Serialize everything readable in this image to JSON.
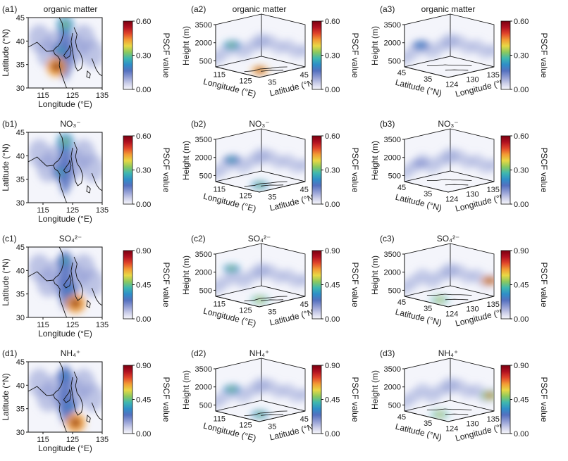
{
  "figure": {
    "colors": {
      "map_background": "#f4f5fb",
      "cmap": [
        "#f7f7fc",
        "#c9cce8",
        "#8f9bd3",
        "#5470bf",
        "#2f8fc8",
        "#3fb7b0",
        "#8cc95e",
        "#e8d845",
        "#f29b34",
        "#e0452a",
        "#b01020",
        "#7a0010"
      ]
    },
    "panels": [
      {
        "id": "a1",
        "label": "(a1)",
        "title": "organic matter",
        "view": "map",
        "xlabel": "Longitude (°E)",
        "ylabel": "Latitude (°N)",
        "xticks": [
          "115",
          "125",
          "135"
        ],
        "yticks": [
          "30",
          "35",
          "40",
          "45"
        ],
        "cbar_label": "PSCF value",
        "cbar_ticks": [
          "0.00",
          "0.30",
          "0.60"
        ]
      },
      {
        "id": "a2",
        "label": "(a2)",
        "title": "organic matter",
        "view": "box_lon",
        "zlabel": "Height (m)",
        "zticks": [
          "500",
          "2000",
          "3500"
        ],
        "axis1_label": "Longitude (°E)",
        "axis1_ticks": [
          "115",
          "125"
        ],
        "axis2_label": "Latitude (°N)",
        "axis2_ticks": [
          "35",
          "45"
        ],
        "cbar_label": "PSCF value",
        "cbar_ticks": [
          "0.00",
          "0.30",
          "0.60"
        ]
      },
      {
        "id": "a3",
        "label": "(a3)",
        "title": "organic matter",
        "view": "box_lat",
        "zlabel": "Height (m)",
        "zticks": [
          "500",
          "2000",
          "3500"
        ],
        "axis1_label": "Latitude (°N)",
        "axis1_ticks": [
          "45",
          "35"
        ],
        "axis2_label": "Longitude (°E)",
        "axis2_ticks": [
          "124",
          "130",
          "135"
        ],
        "cbar_label": "PSCF value",
        "cbar_ticks": [
          "0.00",
          "0.30",
          "0.60"
        ]
      },
      {
        "id": "b1",
        "label": "(b1)",
        "title": "NO₃⁻",
        "view": "map",
        "xlabel": "Longitude (°E)",
        "ylabel": "Latitude (°N)",
        "xticks": [
          "115",
          "125",
          "135"
        ],
        "yticks": [
          "30",
          "35",
          "40",
          "45"
        ],
        "cbar_label": "PSCF value",
        "cbar_ticks": [
          "0.00",
          "0.30",
          "0.60"
        ]
      },
      {
        "id": "b2",
        "label": "(b2)",
        "title": "NO₃⁻",
        "view": "box_lon",
        "zlabel": "Height (m)",
        "zticks": [
          "500",
          "2000",
          "3500"
        ],
        "axis1_label": "Longitude (°E)",
        "axis1_ticks": [
          "115",
          "125"
        ],
        "axis2_label": "Latitude (°N)",
        "axis2_ticks": [
          "35",
          "45"
        ],
        "cbar_label": "PSCF value",
        "cbar_ticks": [
          "0.00",
          "0.30",
          "0.60"
        ]
      },
      {
        "id": "b3",
        "label": "(b3)",
        "title": "NO₃⁻",
        "view": "box_lat",
        "zlabel": "Height (m)",
        "zticks": [
          "500",
          "2000",
          "3500"
        ],
        "axis1_label": "Latitude (°N)",
        "axis1_ticks": [
          "45",
          "35"
        ],
        "axis2_label": "Longitude (°E)",
        "axis2_ticks": [
          "124",
          "130",
          "135"
        ],
        "cbar_label": "PSCF value",
        "cbar_ticks": [
          "0.00",
          "0.30",
          "0.60"
        ]
      },
      {
        "id": "c1",
        "label": "(c1)",
        "title": "SO₄²⁻",
        "view": "map",
        "xlabel": "Longitude (°E)",
        "ylabel": "Latitude (°N)",
        "xticks": [
          "115",
          "125",
          "135"
        ],
        "yticks": [
          "30",
          "35",
          "40",
          "45"
        ],
        "cbar_label": "PSCF value",
        "cbar_ticks": [
          "0.00",
          "0.45",
          "0.90"
        ]
      },
      {
        "id": "c2",
        "label": "(c2)",
        "title": "SO₄²⁻",
        "view": "box_lon",
        "zlabel": "Height (m)",
        "zticks": [
          "500",
          "2000",
          "3500"
        ],
        "axis1_label": "Longitude (°E)",
        "axis1_ticks": [
          "115",
          "125"
        ],
        "axis2_label": "Latitude (°N)",
        "axis2_ticks": [
          "35",
          "45"
        ],
        "cbar_label": "PSCF value",
        "cbar_ticks": [
          "0.00",
          "0.45",
          "0.90"
        ]
      },
      {
        "id": "c3",
        "label": "(c3)",
        "title": "SO₄²⁻",
        "view": "box_lat",
        "zlabel": "Height (m)",
        "zticks": [
          "500",
          "2000",
          "3500"
        ],
        "axis1_label": "Latitude (°N)",
        "axis1_ticks": [
          "45",
          "35"
        ],
        "axis2_label": "Longitude (°E)",
        "axis2_ticks": [
          "124",
          "130",
          "135"
        ],
        "cbar_label": "PSCF value",
        "cbar_ticks": [
          "0.00",
          "0.45",
          "0.90"
        ]
      },
      {
        "id": "d1",
        "label": "(d1)",
        "title": "NH₄⁺",
        "view": "map",
        "xlabel": "Longitude (°E)",
        "ylabel": "Latitude (°N)",
        "xticks": [
          "115",
          "125",
          "135"
        ],
        "yticks": [
          "30",
          "35",
          "40",
          "45"
        ],
        "cbar_label": "PSCF value",
        "cbar_ticks": [
          "0.00",
          "0.45",
          "0.90"
        ]
      },
      {
        "id": "d2",
        "label": "(d2)",
        "title": "NH₄⁺",
        "view": "box_lon",
        "zlabel": "Height (m)",
        "zticks": [
          "500",
          "2000",
          "3500"
        ],
        "axis1_label": "Longitude (°E)",
        "axis1_ticks": [
          "115",
          "125"
        ],
        "axis2_label": "Latitude (°N)",
        "axis2_ticks": [
          "35",
          "45"
        ],
        "cbar_label": "PSCF value",
        "cbar_ticks": [
          "0.00",
          "0.45",
          "0.90"
        ]
      },
      {
        "id": "d3",
        "label": "(d3)",
        "title": "NH₄⁺",
        "view": "box_lat",
        "zlabel": "Height (m)",
        "zticks": [
          "500",
          "2000",
          "3500"
        ],
        "axis1_label": "Latitude (°N)",
        "axis1_ticks": [
          "45",
          "35"
        ],
        "axis2_label": "Longitude (°E)",
        "axis2_ticks": [
          "124",
          "130",
          "135"
        ],
        "cbar_label": "PSCF value",
        "cbar_ticks": [
          "0.00",
          "0.45",
          "0.90"
        ]
      }
    ]
  },
  "chart_data": [
    {
      "type": "heatmap",
      "panel": "a1",
      "x_range": [
        110,
        135
      ],
      "y_range": [
        30,
        45
      ],
      "value_range": [
        0,
        0.6
      ],
      "hotspots": [
        {
          "lon": 119.5,
          "lat": 34.5,
          "value": 0.6
        },
        {
          "lon": 122.5,
          "lat": 43.5,
          "value": 0.35
        },
        {
          "lon": 121,
          "lat": 38,
          "value": 0.25
        }
      ]
    },
    {
      "type": "heatmap",
      "panel": "a2",
      "value_range": [
        0,
        0.6
      ],
      "hotspots": [
        {
          "lon": 121,
          "lat": 35,
          "height": 0,
          "value": 0.6
        },
        {
          "lon": 120,
          "lat": 44,
          "height": 1500,
          "value": 0.3
        }
      ]
    },
    {
      "type": "heatmap",
      "panel": "a3",
      "value_range": [
        0,
        0.6
      ],
      "hotspots": [
        {
          "lon": 124,
          "lat": 44,
          "height": 1500,
          "value": 0.2
        }
      ]
    },
    {
      "type": "heatmap",
      "panel": "b1",
      "x_range": [
        110,
        135
      ],
      "y_range": [
        30,
        45
      ],
      "value_range": [
        0,
        0.6
      ],
      "hotspots": [
        {
          "lon": 122.5,
          "lat": 43,
          "value": 0.35
        },
        {
          "lon": 121,
          "lat": 36.5,
          "value": 0.25
        }
      ]
    },
    {
      "type": "heatmap",
      "panel": "b2",
      "value_range": [
        0,
        0.6
      ],
      "hotspots": [
        {
          "lon": 122,
          "lat": 36,
          "height": 0,
          "value": 0.3
        },
        {
          "lon": 120,
          "lat": 44,
          "height": 1500,
          "value": 0.25
        }
      ]
    },
    {
      "type": "heatmap",
      "panel": "b3",
      "value_range": [
        0,
        0.6
      ],
      "hotspots": [
        {
          "lon": 124,
          "lat": 44,
          "height": 1200,
          "value": 0.12
        }
      ]
    },
    {
      "type": "heatmap",
      "panel": "c1",
      "x_range": [
        110,
        135
      ],
      "y_range": [
        30,
        45
      ],
      "value_range": [
        0,
        0.9
      ],
      "hotspots": [
        {
          "lon": 126,
          "lat": 33,
          "value": 0.9
        },
        {
          "lon": 122.5,
          "lat": 42,
          "value": 0.4
        },
        {
          "lon": 124,
          "lat": 36,
          "value": 0.3
        }
      ]
    },
    {
      "type": "heatmap",
      "panel": "c2",
      "value_range": [
        0,
        0.9
      ],
      "hotspots": [
        {
          "lon": 125,
          "lat": 33,
          "height": 0,
          "value": 0.6
        },
        {
          "lon": 120,
          "lat": 45,
          "height": 2000,
          "value": 0.5
        }
      ]
    },
    {
      "type": "heatmap",
      "panel": "c3",
      "value_range": [
        0,
        0.9
      ],
      "hotspots": [
        {
          "lon": 128,
          "lat": 33,
          "height": 0,
          "value": 0.6
        },
        {
          "lon": 134,
          "lat": 33,
          "height": 1200,
          "value": 0.9
        }
      ]
    },
    {
      "type": "heatmap",
      "panel": "d1",
      "x_range": [
        110,
        135
      ],
      "y_range": [
        30,
        45
      ],
      "value_range": [
        0,
        0.9
      ],
      "hotspots": [
        {
          "lon": 126,
          "lat": 32,
          "value": 0.9
        },
        {
          "lon": 122.5,
          "lat": 42,
          "value": 0.35
        },
        {
          "lon": 124,
          "lat": 35.5,
          "value": 0.3
        }
      ]
    },
    {
      "type": "heatmap",
      "panel": "d2",
      "value_range": [
        0,
        0.9
      ],
      "hotspots": [
        {
          "lon": 124,
          "lat": 34,
          "height": 0,
          "value": 0.45
        },
        {
          "lon": 120,
          "lat": 45,
          "height": 1500,
          "value": 0.5
        }
      ]
    },
    {
      "type": "heatmap",
      "panel": "d3",
      "value_range": [
        0,
        0.9
      ],
      "hotspots": [
        {
          "lon": 128,
          "lat": 33,
          "height": 0,
          "value": 0.6
        },
        {
          "lon": 134,
          "lat": 33,
          "height": 1200,
          "value": 0.75
        }
      ]
    }
  ]
}
